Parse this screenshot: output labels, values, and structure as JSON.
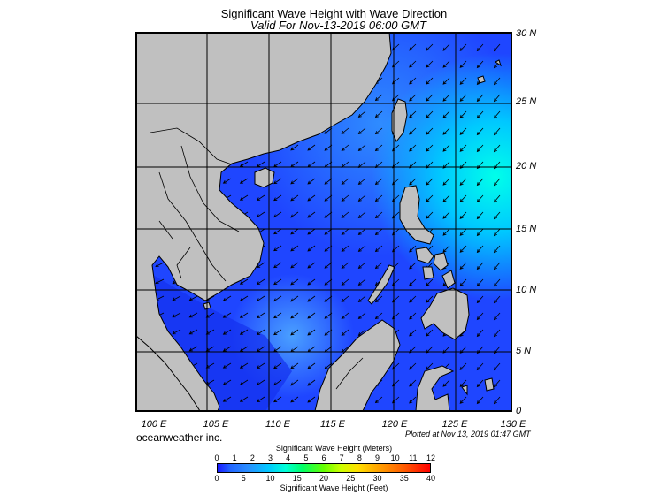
{
  "title": "Significant Wave Height with Wave Direction",
  "subtitle": "Valid For Nov-13-2019 06:00 GMT",
  "lon_labels": [
    "100 E",
    "105 E",
    "110 E",
    "115 E",
    "120 E",
    "125 E",
    "130 E"
  ],
  "lat_labels": [
    "30 N",
    "25 N",
    "20 N",
    "15 N",
    "10 N",
    "5 N",
    "0"
  ],
  "credit": "oceanweather inc.",
  "plotted": "Plotted at Nov 13, 2019 01:47 GMT",
  "colorbar": {
    "label_meters": "Significant Wave Height (Meters)",
    "label_feet": "Significant Wave Height (Feet)",
    "meters": [
      "0",
      "1",
      "2",
      "3",
      "4",
      "5",
      "6",
      "7",
      "8",
      "9",
      "10",
      "11",
      "12"
    ],
    "feet": [
      "0",
      "5",
      "10",
      "15",
      "20",
      "25",
      "30",
      "35",
      "40"
    ]
  },
  "colors": {
    "land": "#c0c0c0",
    "ocean_low": "#1a3cff",
    "ocean_mid": "#2a7cff",
    "ocean_high": "#00e0ff",
    "arrow": "#000000"
  }
}
